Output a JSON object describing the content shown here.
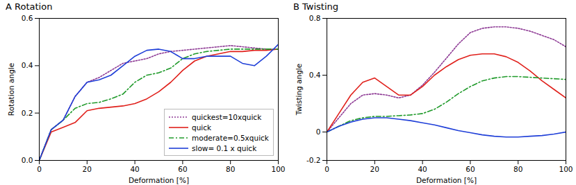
{
  "chart_data": [
    {
      "type": "line",
      "title": "A Rotation",
      "x_label": "Deformation [%]",
      "y_label": "Rotation angle",
      "x": [
        0,
        5,
        10,
        15,
        20,
        25,
        30,
        35,
        40,
        45,
        50,
        55,
        60,
        65,
        70,
        75,
        80,
        85,
        90,
        95,
        100
      ],
      "xlim": [
        0,
        100
      ],
      "xticks": [
        0,
        20,
        40,
        60,
        80,
        100
      ],
      "ylim": [
        0,
        0.6
      ],
      "yticks": [
        {
          "value": 0,
          "label": "0.0"
        },
        0.2,
        0.4,
        0.6
      ],
      "legend": "lower right",
      "series": [
        {
          "name": "quickest=10xquick",
          "color": "#8e3b95",
          "line_style": "dotted",
          "values": [
            0,
            0.13,
            0.17,
            0.27,
            0.33,
            0.35,
            0.38,
            0.41,
            0.42,
            0.43,
            0.45,
            0.46,
            0.465,
            0.47,
            0.475,
            0.48,
            0.485,
            0.48,
            0.475,
            0.47,
            0.47
          ]
        },
        {
          "name": "quick",
          "color": "#e0201b",
          "line_style": "solid",
          "values": [
            0,
            0.12,
            0.14,
            0.16,
            0.21,
            0.22,
            0.225,
            0.23,
            0.24,
            0.26,
            0.29,
            0.33,
            0.38,
            0.42,
            0.44,
            0.45,
            0.46,
            0.46,
            0.465,
            0.465,
            0.47
          ]
        },
        {
          "name": "moderate=0.5xquick",
          "color": "#1f9a2a",
          "line_style": "dashdot",
          "values": [
            0,
            0.13,
            0.17,
            0.22,
            0.24,
            0.245,
            0.26,
            0.28,
            0.33,
            0.36,
            0.37,
            0.39,
            0.43,
            0.45,
            0.46,
            0.465,
            0.47,
            0.47,
            0.47,
            0.47,
            0.47
          ]
        },
        {
          "name": "slow= 0.1 x quick",
          "color": "#1f3fd8",
          "line_style": "solid",
          "values": [
            0,
            0.13,
            0.17,
            0.27,
            0.33,
            0.34,
            0.36,
            0.4,
            0.44,
            0.465,
            0.47,
            0.46,
            0.43,
            0.43,
            0.44,
            0.44,
            0.44,
            0.41,
            0.4,
            0.44,
            0.49
          ]
        }
      ]
    },
    {
      "type": "line",
      "title": "B Twisting",
      "x_label": "Deformation [%]",
      "y_label": "Twisting angle",
      "x": [
        0,
        5,
        10,
        15,
        20,
        25,
        30,
        35,
        40,
        45,
        50,
        55,
        60,
        65,
        70,
        75,
        80,
        85,
        90,
        95,
        100
      ],
      "xlim": [
        0,
        100
      ],
      "xticks": [
        0,
        20,
        40,
        60,
        80,
        100
      ],
      "ylim": [
        -0.2,
        0.8
      ],
      "yticks": [
        -0.2,
        0,
        0.4,
        0.8
      ],
      "series": [
        {
          "name": "quickest=10xquick",
          "color": "#8e3b95",
          "line_style": "dotted",
          "values": [
            0,
            0.1,
            0.2,
            0.26,
            0.27,
            0.26,
            0.24,
            0.26,
            0.33,
            0.42,
            0.52,
            0.62,
            0.7,
            0.73,
            0.74,
            0.74,
            0.73,
            0.71,
            0.68,
            0.65,
            0.6
          ]
        },
        {
          "name": "quick",
          "color": "#e0201b",
          "line_style": "solid",
          "values": [
            0,
            0.13,
            0.26,
            0.35,
            0.38,
            0.32,
            0.26,
            0.26,
            0.32,
            0.4,
            0.46,
            0.51,
            0.54,
            0.55,
            0.55,
            0.53,
            0.49,
            0.43,
            0.36,
            0.3,
            0.24
          ]
        },
        {
          "name": "moderate=0.5xquick",
          "color": "#1f9a2a",
          "line_style": "dashdot",
          "values": [
            0,
            0.04,
            0.08,
            0.1,
            0.11,
            0.11,
            0.115,
            0.12,
            0.13,
            0.16,
            0.21,
            0.27,
            0.32,
            0.36,
            0.38,
            0.39,
            0.39,
            0.385,
            0.38,
            0.375,
            0.37
          ]
        },
        {
          "name": "slow= 0.1 x quick",
          "color": "#1f3fd8",
          "line_style": "solid",
          "values": [
            0,
            0.04,
            0.07,
            0.09,
            0.1,
            0.1,
            0.09,
            0.08,
            0.065,
            0.05,
            0.03,
            0.01,
            -0.005,
            -0.02,
            -0.03,
            -0.035,
            -0.035,
            -0.03,
            -0.025,
            -0.015,
            0
          ]
        }
      ]
    }
  ]
}
